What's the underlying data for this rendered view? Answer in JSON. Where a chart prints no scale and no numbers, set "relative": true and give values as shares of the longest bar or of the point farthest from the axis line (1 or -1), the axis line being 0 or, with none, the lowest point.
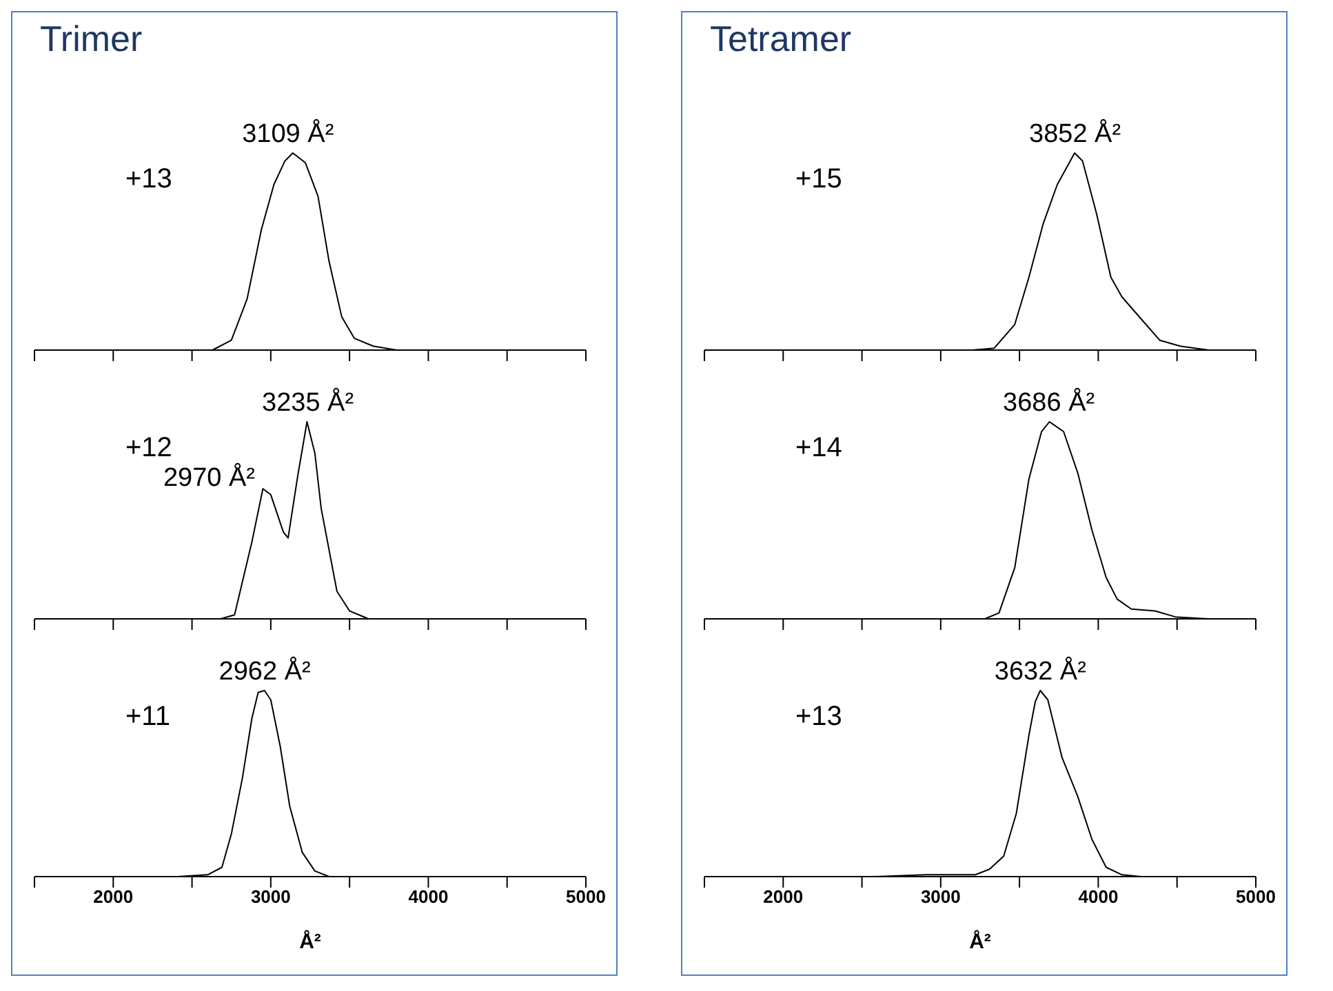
{
  "chart_data": [
    {
      "type": "line",
      "title": "Trimer",
      "relative": true,
      "tick_labels": false,
      "xlim": [
        1500,
        5000
      ],
      "xticks": [
        {
          "value": 1500,
          "label": null
        },
        2000,
        {
          "value": 2500,
          "label": null
        },
        3000,
        {
          "value": 3500,
          "label": null
        },
        4000,
        {
          "value": 4500,
          "label": null
        },
        5000
      ],
      "annotations": [
        "+13",
        {
          "text": "3109 Å²",
          "x": 3109,
          "y": 1
        }
      ],
      "x": [
        2630,
        2750,
        2850,
        2940,
        3020,
        3090,
        3140,
        3220,
        3300,
        3370,
        3450,
        3530,
        3650,
        3800
      ],
      "series": [
        {
          "color": "#000000",
          "values": [
            0,
            0.05,
            0.26,
            0.61,
            0.84,
            0.96,
            1,
            0.95,
            0.78,
            0.45,
            0.17,
            0.06,
            0.02,
            0
          ]
        }
      ]
    },
    {
      "type": "line",
      "relative": true,
      "tick_labels": false,
      "xlim": [
        1500,
        5000
      ],
      "xticks": [
        {
          "value": 1500,
          "label": null
        },
        2000,
        {
          "value": 2500,
          "label": null
        },
        3000,
        {
          "value": 3500,
          "label": null
        },
        4000,
        {
          "value": 4500,
          "label": null
        },
        5000
      ],
      "annotations": [
        "+12",
        {
          "text": "3235 Å²",
          "x": 3235,
          "y": 1
        },
        {
          "text": "2970 Å²",
          "x": 2970,
          "y": 0.66
        }
      ],
      "x": [
        2680,
        2770,
        2880,
        2950,
        3000,
        3080,
        3110,
        3170,
        3230,
        3280,
        3320,
        3420,
        3500,
        3620
      ],
      "series": [
        {
          "color": "#000000",
          "values": [
            0,
            0.02,
            0.39,
            0.66,
            0.63,
            0.44,
            0.41,
            0.72,
            1,
            0.84,
            0.56,
            0.14,
            0.04,
            0
          ]
        }
      ]
    },
    {
      "type": "line",
      "relative": true,
      "tick_labels": "x",
      "xlabel": "Å²",
      "xlim": [
        1500,
        5000
      ],
      "xticks": [
        {
          "value": 1500,
          "label": null
        },
        2000,
        {
          "value": 2500,
          "label": null
        },
        3000,
        {
          "value": 3500,
          "label": null
        },
        4000,
        {
          "value": 4500,
          "label": null
        },
        5000
      ],
      "annotations": [
        "+11",
        {
          "text": "2962 Å²",
          "x": 2962,
          "y": 1
        }
      ],
      "x": [
        2410,
        2600,
        2690,
        2750,
        2820,
        2880,
        2920,
        2960,
        3000,
        3060,
        3120,
        3200,
        3280,
        3370
      ],
      "series": [
        {
          "color": "#000000",
          "values": [
            0,
            0.01,
            0.05,
            0.23,
            0.53,
            0.85,
            0.99,
            1,
            0.95,
            0.7,
            0.38,
            0.13,
            0.03,
            0
          ]
        }
      ]
    },
    {
      "type": "line",
      "title": "Tetramer",
      "relative": true,
      "tick_labels": false,
      "xlim": [
        1500,
        5000
      ],
      "xticks": [
        {
          "value": 1500,
          "label": null
        },
        2000,
        {
          "value": 2500,
          "label": null
        },
        3000,
        {
          "value": 3500,
          "label": null
        },
        4000,
        {
          "value": 4500,
          "label": null
        },
        5000
      ],
      "annotations": [
        "+15",
        {
          "text": "3852 Å²",
          "x": 3852,
          "y": 1
        }
      ],
      "x": [
        3200,
        3340,
        3470,
        3560,
        3650,
        3740,
        3850,
        3900,
        3990,
        4080,
        4150,
        4270,
        4390,
        4520,
        4700
      ],
      "series": [
        {
          "color": "#000000",
          "values": [
            0,
            0.01,
            0.13,
            0.37,
            0.64,
            0.84,
            1,
            0.96,
            0.69,
            0.37,
            0.27,
            0.16,
            0.05,
            0.02,
            0
          ]
        }
      ]
    },
    {
      "type": "line",
      "relative": true,
      "tick_labels": false,
      "xlim": [
        1500,
        5000
      ],
      "xticks": [
        {
          "value": 1500,
          "label": null
        },
        2000,
        {
          "value": 2500,
          "label": null
        },
        3000,
        {
          "value": 3500,
          "label": null
        },
        4000,
        {
          "value": 4500,
          "label": null
        },
        5000
      ],
      "annotations": [
        "+14",
        {
          "text": "3686 Å²",
          "x": 3686,
          "y": 1
        }
      ],
      "x": [
        2880,
        3280,
        3370,
        3470,
        3560,
        3640,
        3690,
        3780,
        3870,
        3960,
        4050,
        4120,
        4210,
        4360,
        4490,
        4700
      ],
      "series": [
        {
          "color": "#000000",
          "values": [
            0,
            0,
            0.03,
            0.26,
            0.71,
            0.95,
            1,
            0.95,
            0.74,
            0.45,
            0.21,
            0.1,
            0.05,
            0.04,
            0.01,
            0
          ]
        }
      ]
    },
    {
      "type": "line",
      "relative": true,
      "tick_labels": "x",
      "xlabel": "Å²",
      "xlim": [
        1500,
        5000
      ],
      "xticks": [
        {
          "value": 1500,
          "label": null
        },
        2000,
        {
          "value": 2500,
          "label": null
        },
        3000,
        {
          "value": 3500,
          "label": null
        },
        4000,
        {
          "value": 4500,
          "label": null
        },
        5000
      ],
      "annotations": [
        "+13",
        {
          "text": "3632 Å²",
          "x": 3632,
          "y": 1
        }
      ],
      "x": [
        2570,
        2910,
        3220,
        3310,
        3400,
        3480,
        3560,
        3600,
        3632,
        3680,
        3770,
        3870,
        3960,
        4050,
        4150,
        4270
      ],
      "series": [
        {
          "color": "#000000",
          "values": [
            0,
            0.01,
            0.01,
            0.04,
            0.11,
            0.34,
            0.76,
            0.94,
            1,
            0.95,
            0.64,
            0.43,
            0.2,
            0.05,
            0.01,
            0
          ]
        }
      ]
    }
  ]
}
